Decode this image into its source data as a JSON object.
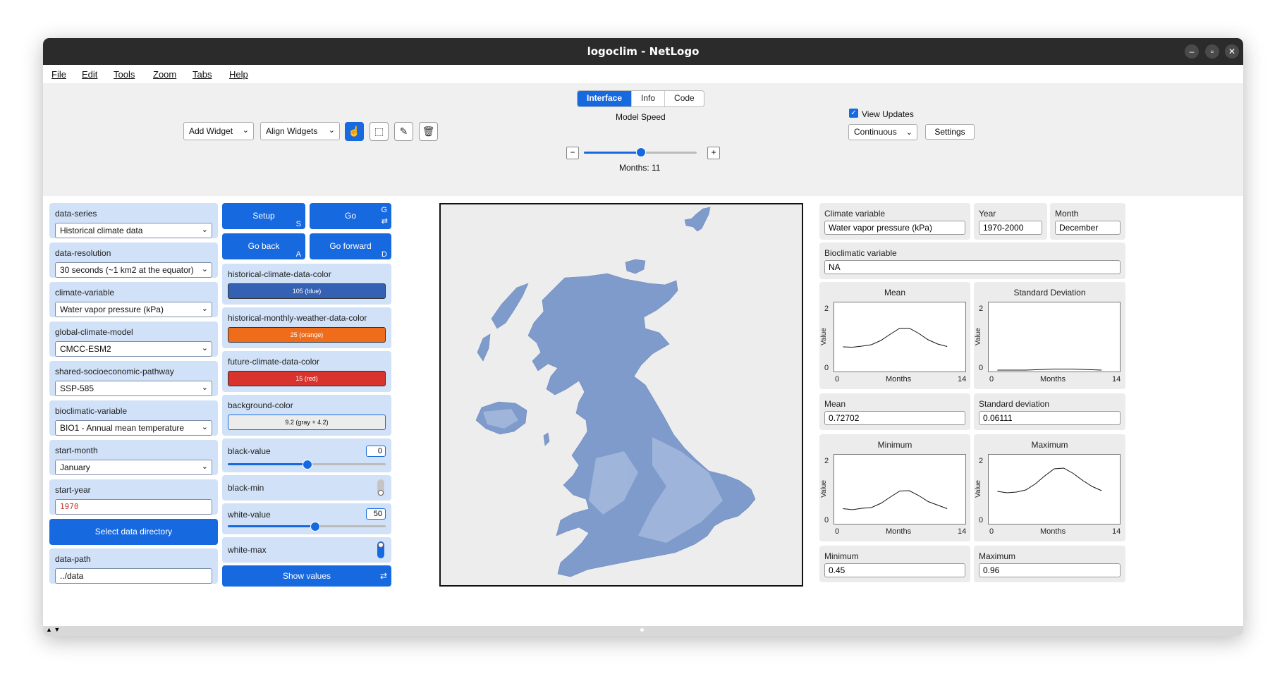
{
  "window": {
    "title": "logoclim - NetLogo"
  },
  "menu": [
    "File",
    "Edit",
    "Tools",
    "Zoom",
    "Tabs",
    "Help"
  ],
  "tabs": [
    "Interface",
    "Info",
    "Code"
  ],
  "toolbar": {
    "add_widget": "Add Widget",
    "align_widgets": "Align Widgets",
    "model_speed_label": "Model Speed",
    "model_speed_fraction": 0.5,
    "ticks_label": "Months: 11",
    "view_updates_label": "View Updates",
    "update_mode": "Continuous",
    "settings": "Settings"
  },
  "left_widgets": {
    "data_series": {
      "label": "data-series",
      "value": "Historical climate data"
    },
    "data_resolution": {
      "label": "data-resolution",
      "value": "30 seconds (~1 km2  at the equator)"
    },
    "climate_variable": {
      "label": "climate-variable",
      "value": "Water vapor pressure (kPa)"
    },
    "global_climate_model": {
      "label": "global-climate-model",
      "value": "CMCC-ESM2"
    },
    "ssp": {
      "label": "shared-socioeconomic-pathway",
      "value": "SSP-585"
    },
    "bioclimatic_variable": {
      "label": "bioclimatic-variable",
      "value": "BIO1 - Annual mean temperature"
    },
    "start_month": {
      "label": "start-month",
      "value": "January"
    },
    "start_year": {
      "label": "start-year",
      "value": "1970"
    },
    "select_dir": "Select data directory",
    "data_path": {
      "label": "data-path",
      "value": "../data"
    }
  },
  "mid_widgets": {
    "setup": {
      "label": "Setup",
      "key": "S"
    },
    "go": {
      "label": "Go",
      "key": "G"
    },
    "go_back": {
      "label": "Go back",
      "key": "A"
    },
    "go_forward": {
      "label": "Go forward",
      "key": "D"
    },
    "hist_color": {
      "label": "historical-climate-data-color",
      "value": "105 (blue)",
      "color": "#3461b4"
    },
    "weather_color": {
      "label": "historical-monthly-weather-data-color",
      "value": "25 (orange)",
      "color": "#ef6c1a"
    },
    "future_color": {
      "label": "future-climate-data-color",
      "value": "15 (red)",
      "color": "#d8332c"
    },
    "bg_color": {
      "label": "background-color",
      "value": "9.2 (gray + 4.2)",
      "color": "#ececec"
    },
    "black_value": {
      "label": "black-value",
      "value": "0",
      "fraction": 0.5
    },
    "black_min": {
      "label": "black-min"
    },
    "white_value": {
      "label": "white-value",
      "value": "50",
      "fraction": 0.55
    },
    "white_max": {
      "label": "white-max"
    },
    "show_values": "Show values"
  },
  "monitors": {
    "climate_variable": {
      "label": "Climate variable",
      "value": "Water vapor pressure (kPa)"
    },
    "year": {
      "label": "Year",
      "value": "1970-2000"
    },
    "month": {
      "label": "Month",
      "value": "December"
    },
    "bioclimatic": {
      "label": "Bioclimatic variable",
      "value": "NA"
    },
    "mean": {
      "label": "Mean",
      "value": "0.72702"
    },
    "std": {
      "label": "Standard deviation",
      "value": "0.06111"
    },
    "min": {
      "label": "Minimum",
      "value": "0.45"
    },
    "max": {
      "label": "Maximum",
      "value": "0.96"
    }
  },
  "chart_data": [
    {
      "type": "line",
      "title": "Mean",
      "xlabel": "Months",
      "ylabel": "Value",
      "xlim": [
        0,
        14
      ],
      "ylim": [
        0,
        2
      ],
      "x": [
        1,
        2,
        3,
        4,
        5,
        6,
        7,
        8,
        9,
        10,
        11,
        12
      ],
      "values": [
        0.72,
        0.71,
        0.74,
        0.78,
        0.9,
        1.08,
        1.25,
        1.25,
        1.1,
        0.92,
        0.8,
        0.73
      ]
    },
    {
      "type": "line",
      "title": "Standard Deviation",
      "xlabel": "Months",
      "ylabel": "Value",
      "xlim": [
        0,
        14
      ],
      "ylim": [
        0,
        2
      ],
      "x": [
        1,
        2,
        3,
        4,
        5,
        6,
        7,
        8,
        9,
        10,
        11,
        12
      ],
      "values": [
        0.06,
        0.06,
        0.06,
        0.06,
        0.07,
        0.08,
        0.09,
        0.09,
        0.09,
        0.08,
        0.07,
        0.06
      ]
    },
    {
      "type": "line",
      "title": "Minimum",
      "xlabel": "Months",
      "ylabel": "Value",
      "xlim": [
        0,
        14
      ],
      "ylim": [
        0,
        2
      ],
      "x": [
        1,
        2,
        3,
        4,
        5,
        6,
        7,
        8,
        9,
        10,
        11,
        12
      ],
      "values": [
        0.45,
        0.42,
        0.46,
        0.48,
        0.6,
        0.78,
        0.95,
        0.96,
        0.82,
        0.65,
        0.55,
        0.45
      ]
    },
    {
      "type": "line",
      "title": "Maximum",
      "xlabel": "Months",
      "ylabel": "Value",
      "xlim": [
        0,
        14
      ],
      "ylim": [
        0,
        2
      ],
      "x": [
        1,
        2,
        3,
        4,
        5,
        6,
        7,
        8,
        9,
        10,
        11,
        12
      ],
      "values": [
        0.94,
        0.9,
        0.92,
        0.98,
        1.15,
        1.38,
        1.58,
        1.6,
        1.45,
        1.25,
        1.08,
        0.96
      ]
    }
  ]
}
